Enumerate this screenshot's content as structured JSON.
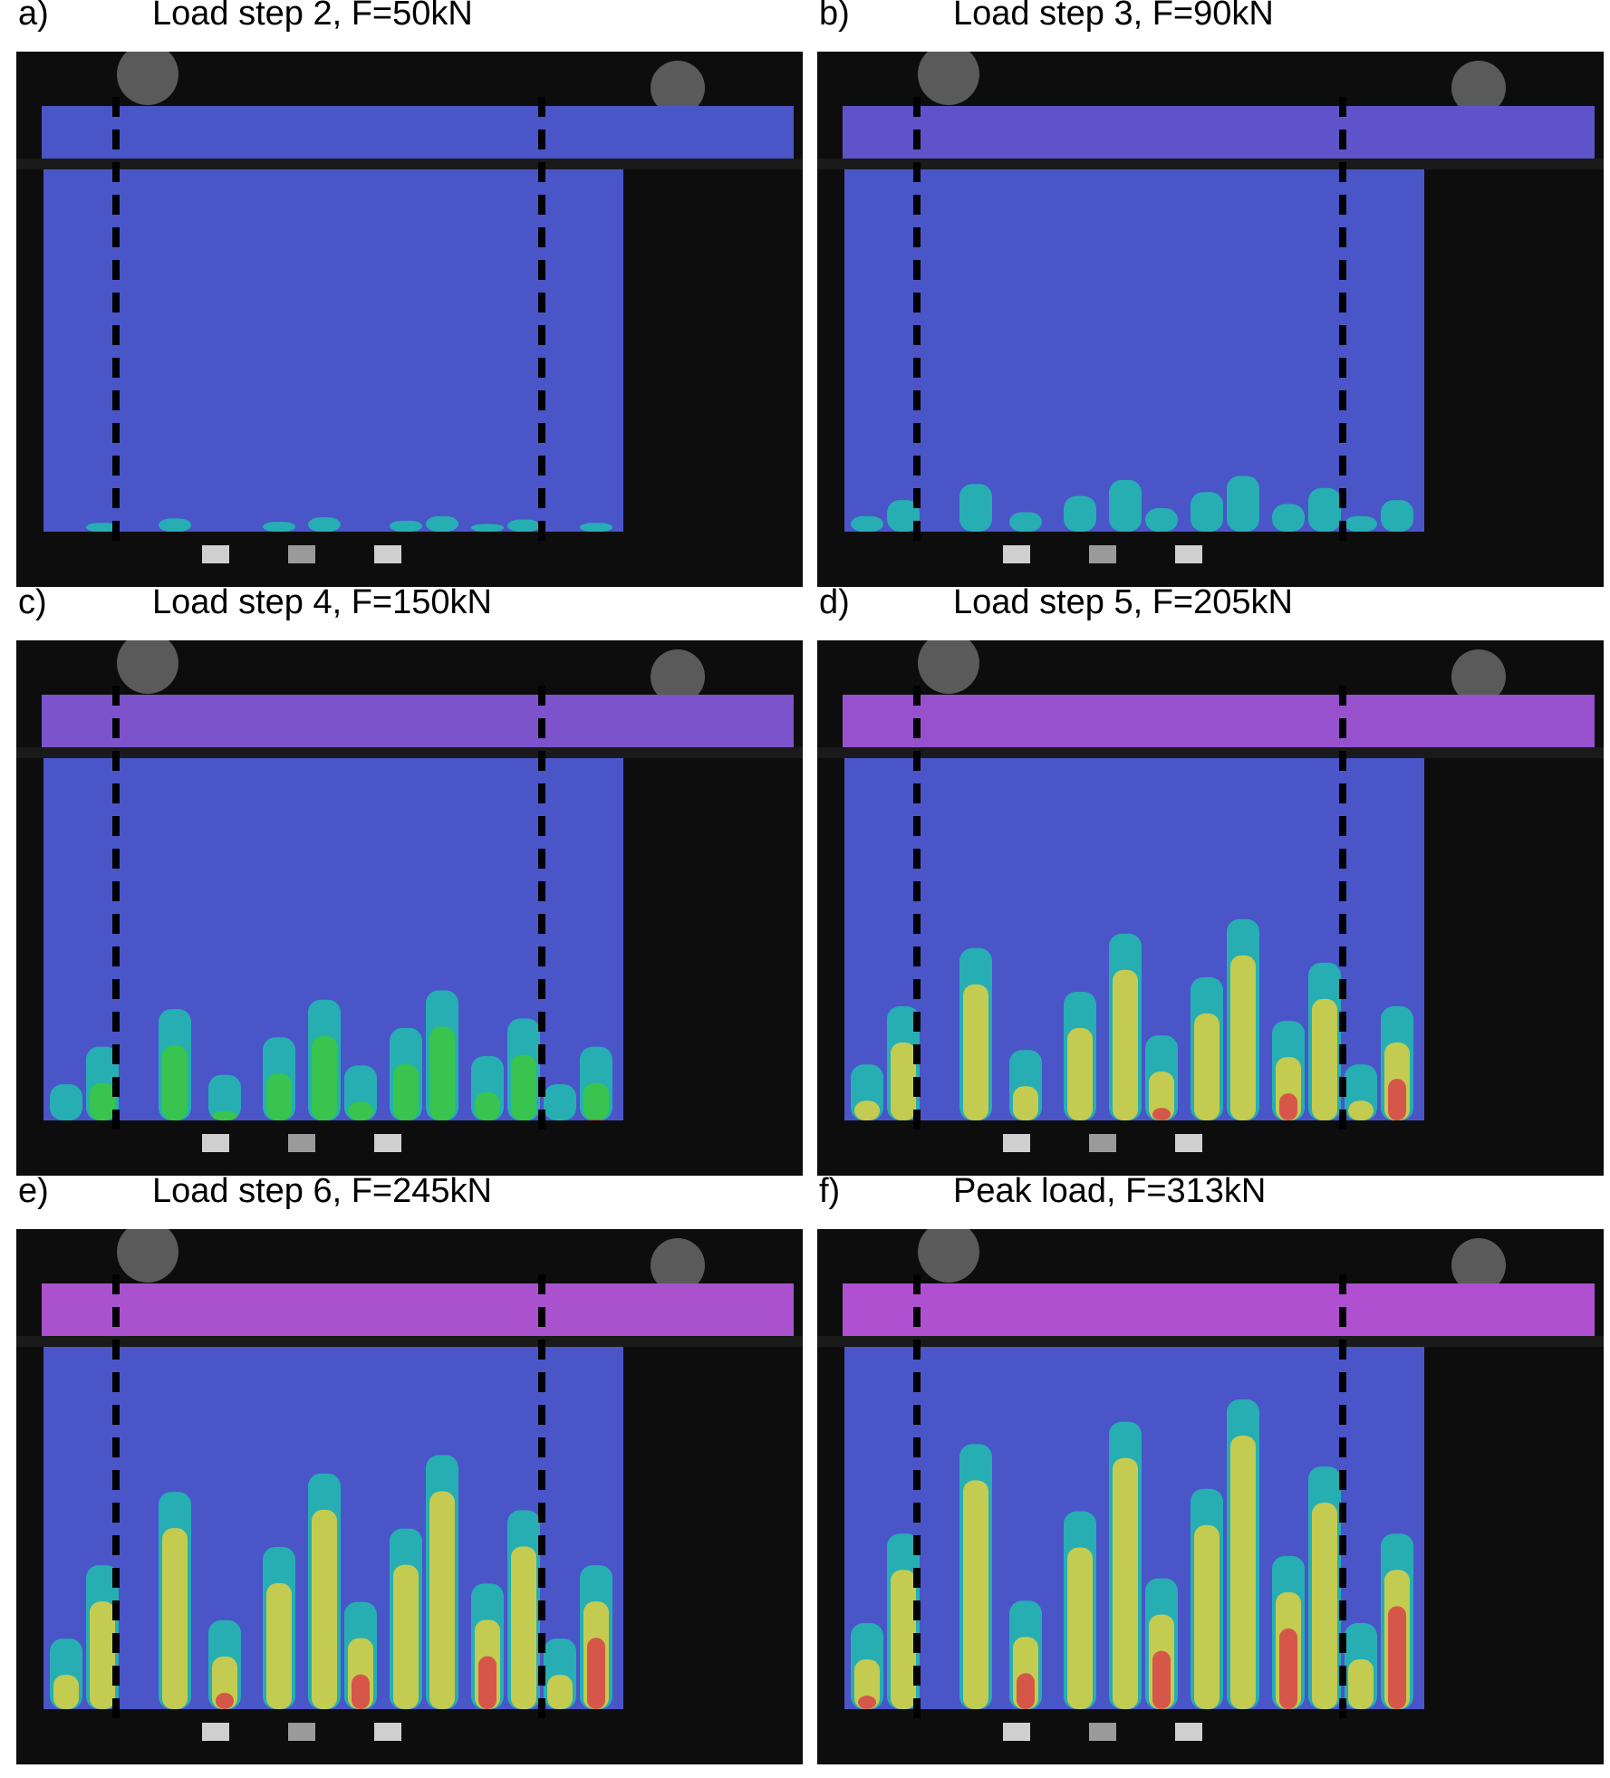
{
  "figure": {
    "panels": [
      {
        "label": "a)",
        "title": "Load step 2, F=50kN",
        "level": 0.05
      },
      {
        "label": "b)",
        "title": "Load step 3, F=90kN",
        "level": 0.18
      },
      {
        "label": "c)",
        "title": "Load step 4, F=150kN",
        "level": 0.42
      },
      {
        "label": "d)",
        "title": "Load step 5, F=205kN",
        "level": 0.65
      },
      {
        "label": "e)",
        "title": "Load step 6, F=245kN",
        "level": 0.82
      },
      {
        "label": "f)",
        "title": "Peak load, F=313kN",
        "level": 1.0
      }
    ],
    "colors": {
      "background": "#0d0d0d",
      "low_strain": "#4a55c8",
      "mid_strain": "#22b8b0",
      "high_green": "#3cc83c",
      "yellow": "#e0d040",
      "peak_red": "#d84a48",
      "magenta": "#c050d0",
      "dashed_line": "#000000"
    }
  }
}
